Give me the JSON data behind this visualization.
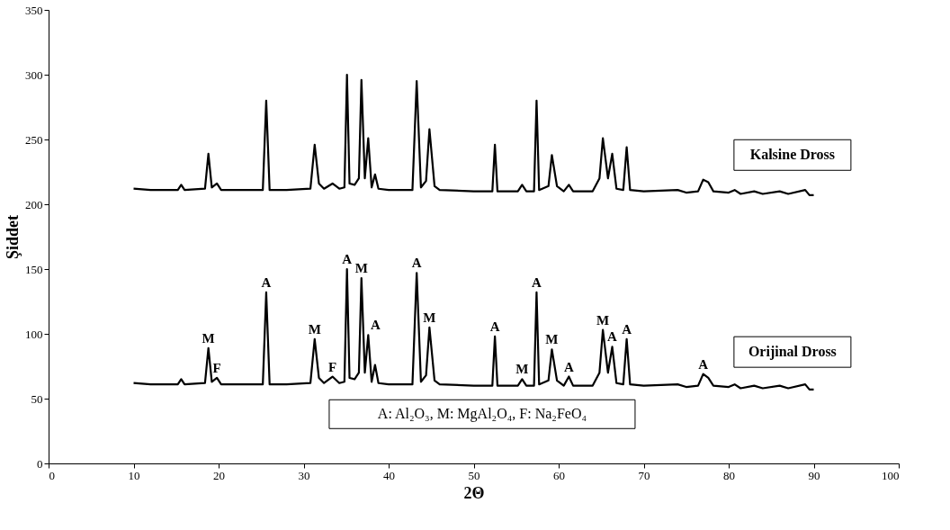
{
  "chart_data": {
    "type": "line",
    "xlabel": "2Θ",
    "ylabel": "Şiddet",
    "x": [
      10,
      12,
      14,
      15.2,
      15.6,
      16,
      18.4,
      18.8,
      19.2,
      19.8,
      20.3,
      22,
      25.2,
      25.6,
      26,
      28,
      30.8,
      31.3,
      31.8,
      32.4,
      33.4,
      34.2,
      34.8,
      35.1,
      35.4,
      36,
      36.5,
      36.8,
      37.2,
      37.6,
      38,
      38.4,
      38.8,
      40,
      42.8,
      43.3,
      43.8,
      44.4,
      44.8,
      45.4,
      46,
      50,
      52.2,
      52.5,
      52.8,
      55.2,
      55.7,
      56.2,
      57.1,
      57.4,
      57.7,
      58.8,
      59.2,
      59.8,
      60.6,
      61.2,
      61.7,
      64,
      64.8,
      65.2,
      65.8,
      66.3,
      66.8,
      67.6,
      68,
      68.4,
      70,
      74,
      75,
      76.4,
      77,
      77.6,
      78.2,
      80,
      80.7,
      81.4,
      83,
      84,
      86,
      87,
      89,
      89.5,
      90
    ],
    "series": [
      {
        "name": "Kalsine Dross",
        "color": "#000000",
        "values": [
          212,
          211,
          211,
          211,
          215,
          211,
          212,
          239,
          213,
          216,
          211,
          211,
          211,
          280,
          211,
          211,
          212,
          246,
          216,
          212,
          216,
          212,
          213,
          300,
          216,
          215,
          220,
          296,
          220,
          251,
          213,
          223,
          212,
          211,
          211,
          295,
          213,
          218,
          258,
          214,
          211,
          210,
          210,
          246,
          210,
          210,
          215,
          210,
          210,
          280,
          211,
          214,
          238,
          214,
          210,
          215,
          210,
          210,
          220,
          251,
          220,
          239,
          212,
          211,
          244,
          211,
          210,
          211,
          209,
          210,
          219,
          217,
          210,
          209,
          211,
          208,
          210,
          208,
          210,
          208,
          211,
          207,
          207
        ]
      },
      {
        "name": "Orijinal Dross",
        "color": "#000000",
        "values": [
          62,
          61,
          61,
          61,
          65,
          61,
          62,
          89,
          63,
          66,
          61,
          61,
          61,
          132,
          61,
          61,
          62,
          96,
          66,
          62,
          67,
          62,
          63,
          150,
          66,
          65,
          70,
          143,
          70,
          99,
          63,
          76,
          62,
          61,
          61,
          147,
          63,
          68,
          105,
          64,
          61,
          60,
          60,
          98,
          60,
          60,
          65,
          60,
          60,
          132,
          61,
          64,
          88,
          64,
          60,
          67,
          60,
          60,
          70,
          103,
          70,
          90,
          62,
          61,
          96,
          61,
          60,
          61,
          59,
          60,
          69,
          66,
          60,
          59,
          61,
          58,
          60,
          58,
          60,
          58,
          61,
          57,
          57
        ]
      }
    ],
    "xlim": [
      0,
      100
    ],
    "xticks": [
      0,
      10,
      20,
      30,
      40,
      50,
      60,
      70,
      80,
      90,
      100
    ],
    "ylim": [
      0,
      350
    ],
    "yticks": [
      0,
      50,
      100,
      150,
      200,
      250,
      300,
      350
    ],
    "grid": false,
    "legend": false,
    "marker": "none",
    "line_style": "solid",
    "annotations": [
      {
        "text": "M",
        "x": 18.8,
        "y": 89
      },
      {
        "text": "F",
        "x": 19.8,
        "y": 66
      },
      {
        "text": "A",
        "x": 25.6,
        "y": 132
      },
      {
        "text": "M",
        "x": 31.3,
        "y": 96
      },
      {
        "text": "F",
        "x": 33.4,
        "y": 67
      },
      {
        "text": "A",
        "x": 35.1,
        "y": 150
      },
      {
        "text": "M",
        "x": 36.8,
        "y": 143
      },
      {
        "text": "A",
        "x": 37.6,
        "y": 99
      },
      {
        "text": "A",
        "x": 43.3,
        "y": 147
      },
      {
        "text": "M",
        "x": 44.8,
        "y": 105
      },
      {
        "text": "A",
        "x": 52.5,
        "y": 98
      },
      {
        "text": "M",
        "x": 55.7,
        "y": 65
      },
      {
        "text": "A",
        "x": 57.4,
        "y": 132
      },
      {
        "text": "M",
        "x": 59.2,
        "y": 88
      },
      {
        "text": "A",
        "x": 61.2,
        "y": 67
      },
      {
        "text": "M",
        "x": 65.2,
        "y": 103
      },
      {
        "text": "A",
        "x": 66.3,
        "y": 90
      },
      {
        "text": "A",
        "x": 68,
        "y": 96
      },
      {
        "text": "A",
        "x": 77,
        "y": 69
      },
      "A: Al₂O₃, M: MgAl₂O₄, F: Na₂FeO₄"
    ]
  }
}
